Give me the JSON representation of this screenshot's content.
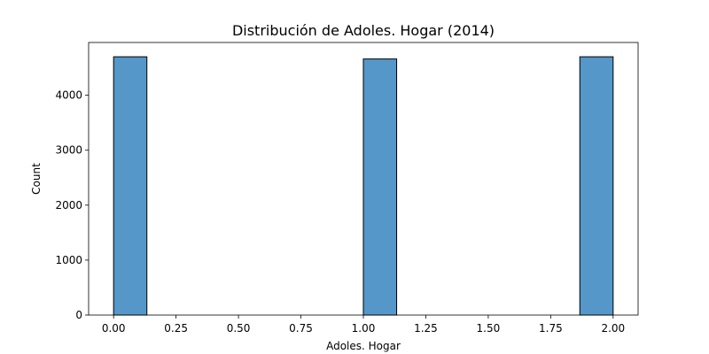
{
  "chart_data": {
    "type": "bar",
    "title": "Distribución de Adoles. Hogar (2014)",
    "xlabel": "Adoles. Hogar",
    "ylabel": "Count",
    "xlim": [
      -0.1,
      2.1
    ],
    "ylim": [
      0,
      4960
    ],
    "bin_width": 0.1333,
    "bars": [
      {
        "x_start": 0.0,
        "value": 4700
      },
      {
        "x_start": 1.0,
        "value": 4660
      },
      {
        "x_start": 1.8667,
        "value": 4700
      }
    ],
    "x_ticks": [
      "0.00",
      "0.25",
      "0.50",
      "0.75",
      "1.00",
      "1.25",
      "1.50",
      "1.75",
      "2.00"
    ],
    "y_ticks": [
      "0",
      "1000",
      "2000",
      "3000",
      "4000"
    ],
    "grid": false,
    "colors": {
      "bar_fill": "#5597c8",
      "bar_edge": "#000000"
    }
  }
}
